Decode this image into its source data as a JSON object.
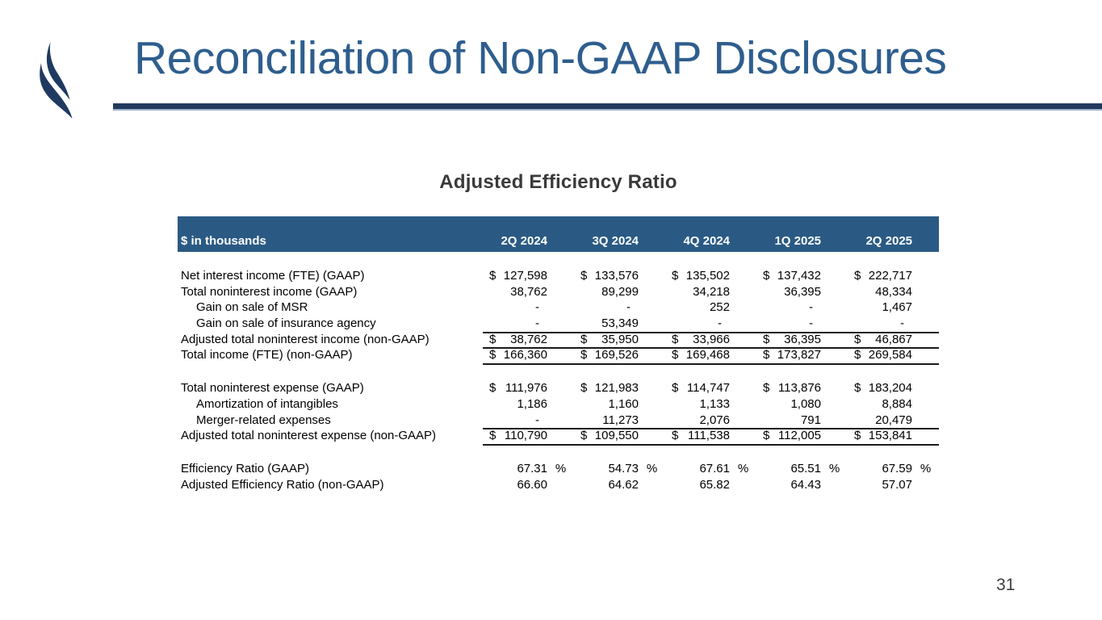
{
  "slide": {
    "title": "Reconciliation of Non-GAAP Disclosures",
    "page_number": "31"
  },
  "table": {
    "title": "Adjusted Efficiency Ratio",
    "unit_label": "$ in thousands",
    "quarters": [
      "2Q 2024",
      "3Q 2024",
      "4Q 2024",
      "1Q 2025",
      "2Q 2025"
    ],
    "rows": [
      {
        "label": "Net interest income (FTE) (GAAP)",
        "dollar": true,
        "values": [
          "127,598",
          "133,576",
          "135,502",
          "137,432",
          "222,717"
        ]
      },
      {
        "label": "Total noninterest income (GAAP)",
        "values": [
          "38,762",
          "89,299",
          "34,218",
          "36,395",
          "48,334"
        ]
      },
      {
        "label": "Gain on sale of MSR",
        "indent": true,
        "values": [
          "-",
          "-",
          "252",
          "-",
          "1,467"
        ]
      },
      {
        "label": "Gain on sale of insurance agency",
        "indent": true,
        "line_below": true,
        "values": [
          "-",
          "53,349",
          "-",
          "-",
          "-"
        ]
      },
      {
        "label": "Adjusted total noninterest income (non-GAAP)",
        "dollar": true,
        "line_below": true,
        "values": [
          "38,762",
          "35,950",
          "33,966",
          "36,395",
          "46,867"
        ]
      },
      {
        "label": "Total income (FTE) (non-GAAP)",
        "dollar": true,
        "line_below": true,
        "values": [
          "166,360",
          "169,526",
          "169,468",
          "173,827",
          "269,584"
        ]
      },
      {
        "spacer": true
      },
      {
        "label": "Total noninterest expense (GAAP)",
        "dollar": true,
        "values": [
          "111,976",
          "121,983",
          "114,747",
          "113,876",
          "183,204"
        ]
      },
      {
        "label": "Amortization of intangibles",
        "indent": true,
        "values": [
          "1,186",
          "1,160",
          "1,133",
          "1,080",
          "8,884"
        ]
      },
      {
        "label": "Merger-related expenses",
        "indent": true,
        "line_below": true,
        "values": [
          "-",
          "11,273",
          "2,076",
          "791",
          "20,479"
        ]
      },
      {
        "label": "Adjusted total noninterest expense (non-GAAP)",
        "dollar": true,
        "line_below": true,
        "values": [
          "110,790",
          "109,550",
          "111,538",
          "112,005",
          "153,841"
        ]
      },
      {
        "spacer": true
      },
      {
        "label": "Efficiency Ratio (GAAP)",
        "percent": true,
        "values": [
          "67.31",
          "54.73",
          "67.61",
          "65.51",
          "67.59"
        ]
      },
      {
        "label": "Adjusted Efficiency Ratio (non-GAAP)",
        "values": [
          "66.60",
          "64.62",
          "65.82",
          "64.43",
          "57.07"
        ]
      }
    ]
  },
  "icons": {
    "logo": "swoosh-logo"
  },
  "colors": {
    "title_blue": "#2E5E8E",
    "divider_navy": "#24395E",
    "divider_light": "#9FB3C8",
    "header_bg": "#2A5A84",
    "header_text": "#FFFFFF",
    "logo_navy": "#1F3A60",
    "body_text": "#000000",
    "subtitle_text": "#3A3A3A",
    "rule_color": "#1B1B1B"
  }
}
